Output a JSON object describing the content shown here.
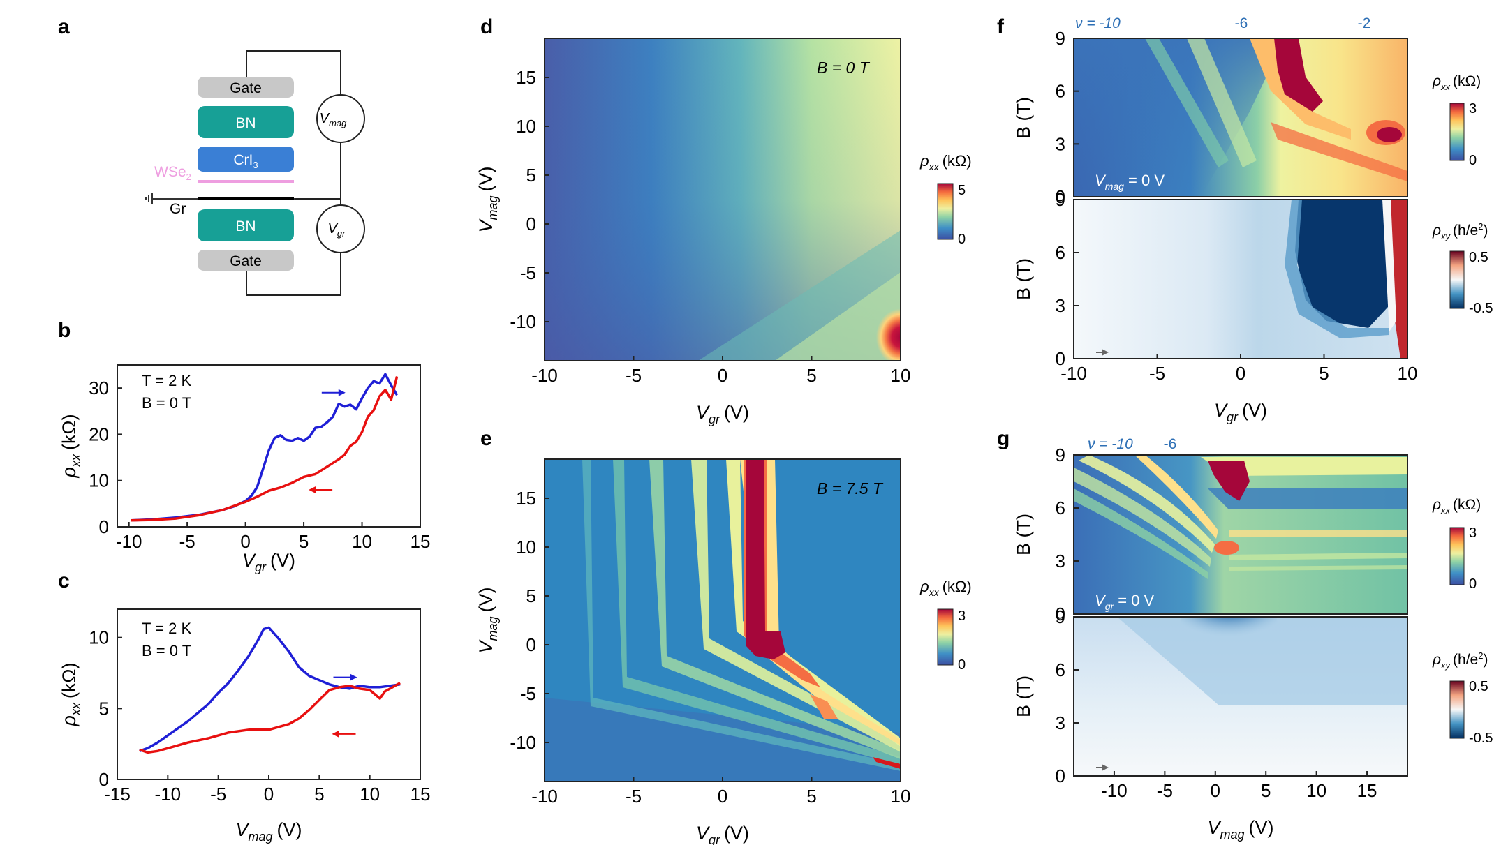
{
  "figure": {
    "panel_labels": [
      "a",
      "b",
      "c",
      "d",
      "e",
      "f",
      "g"
    ]
  },
  "schematic": {
    "layers": [
      "Gate",
      "BN",
      "CrI",
      "WSe",
      "Gr",
      "BN",
      "Gate"
    ],
    "subscript_3": "3",
    "subscript_2": "2",
    "meter_vmag": "V",
    "meter_vmag_sub": "mag",
    "meter_vgr": "V",
    "meter_vgr_sub": "gr",
    "colors": {
      "gate": "#c8c8c8",
      "bn": "#17a096",
      "cri3": "#3a7fd5",
      "wse2": "#ee9ee0",
      "graphene": "#000000"
    }
  },
  "chart_data": [
    {
      "id": "b",
      "type": "line",
      "title": "",
      "annotations": [
        "T = 2 K",
        "B = 0 T"
      ],
      "xlabel": "V",
      "xlabel_sub": "gr",
      "xunit": "(V)",
      "ylabel": "ρ",
      "ylabel_sub": "xx",
      "yunit": "(kΩ)",
      "xlim": [
        -11,
        15
      ],
      "ylim": [
        0,
        35
      ],
      "xticks": [
        -10,
        -5,
        0,
        5,
        10,
        15
      ],
      "yticks": [
        0,
        10,
        20,
        30
      ],
      "series": [
        {
          "name": "forward sweep",
          "color": "#1f1fd6",
          "x": [
            -9.8,
            -8,
            -6,
            -4,
            -2,
            -1,
            0,
            0.5,
            1,
            1.5,
            2,
            2.5,
            3,
            3.5,
            4,
            4.5,
            5,
            5.5,
            6,
            6.5,
            7,
            7.5,
            8,
            8.5,
            9,
            9.5,
            10,
            10.5,
            11,
            11.5,
            12,
            12.5,
            13
          ],
          "y": [
            1.4,
            1.6,
            2,
            2.6,
            3.6,
            4.4,
            5.6,
            6.7,
            8.6,
            12.5,
            16.5,
            19.2,
            19.8,
            18.8,
            18.6,
            19.2,
            18.6,
            19.5,
            21.4,
            21.6,
            22.6,
            23.8,
            26.6,
            26,
            26.4,
            25.4,
            27.8,
            30,
            31.5,
            31,
            33,
            30.6,
            28.5
          ]
        },
        {
          "name": "backward sweep",
          "color": "#e81010",
          "x": [
            -9.8,
            -8,
            -6,
            -4,
            -2,
            -1,
            0,
            1,
            2,
            3,
            4,
            5,
            6,
            7,
            8,
            8.5,
            9,
            9.5,
            10,
            10.5,
            11,
            11.5,
            12,
            12.5,
            13
          ],
          "y": [
            1.4,
            1.5,
            1.8,
            2.5,
            3.6,
            4.5,
            5.4,
            6.5,
            7.8,
            8.5,
            9.5,
            10.8,
            11.4,
            13,
            14.6,
            15.6,
            17.5,
            18.4,
            20.5,
            23.8,
            25.2,
            28.2,
            29.6,
            27.5,
            32.5
          ]
        }
      ],
      "arrows": [
        {
          "color": "#1f1fd6",
          "direction": "right",
          "at": [
            7.5,
            29
          ]
        },
        {
          "color": "#e81010",
          "direction": "left",
          "at": [
            6.5,
            8
          ]
        }
      ]
    },
    {
      "id": "c",
      "type": "line",
      "annotations": [
        "T = 2 K",
        "B = 0 T"
      ],
      "xlabel": "V",
      "xlabel_sub": "mag",
      "xunit": "(V)",
      "ylabel": "ρ",
      "ylabel_sub": "xx",
      "yunit": "(kΩ)",
      "xlim": [
        -15,
        15
      ],
      "ylim": [
        0,
        12
      ],
      "xticks": [
        -15,
        -10,
        -5,
        0,
        5,
        10,
        15
      ],
      "yticks": [
        0,
        5,
        10
      ],
      "series": [
        {
          "name": "forward sweep",
          "color": "#1f1fd6",
          "x": [
            -12.8,
            -12,
            -11,
            -10,
            -9,
            -8,
            -7,
            -6,
            -5,
            -4,
            -3,
            -2,
            -1,
            -0.5,
            0,
            1,
            2,
            3,
            4,
            5,
            6,
            7,
            8,
            9,
            10,
            11,
            12,
            13
          ],
          "y": [
            2,
            2.2,
            2.6,
            3.1,
            3.6,
            4.1,
            4.7,
            5.3,
            6.1,
            6.8,
            7.7,
            8.7,
            9.9,
            10.6,
            10.7,
            9.9,
            9,
            7.9,
            7.3,
            7,
            6.7,
            6.5,
            6.4,
            6.6,
            6.5,
            6.5,
            6.6,
            6.7
          ]
        },
        {
          "name": "backward sweep",
          "color": "#e81010",
          "x": [
            -12.8,
            -12,
            -11,
            -10,
            -8,
            -6,
            -4,
            -2,
            0,
            2,
            3,
            4,
            5,
            6,
            7,
            8,
            9,
            10,
            11,
            11.5,
            12,
            13
          ],
          "y": [
            2.1,
            1.9,
            2,
            2.2,
            2.6,
            2.9,
            3.3,
            3.5,
            3.5,
            3.9,
            4.3,
            4.9,
            5.6,
            6.3,
            6.5,
            6.6,
            6.4,
            6.3,
            5.7,
            6.2,
            6.4,
            6.8
          ]
        }
      ],
      "arrows": [
        {
          "color": "#1f1fd6",
          "direction": "right",
          "at": [
            7.5,
            7.2
          ]
        },
        {
          "color": "#e81010",
          "direction": "left",
          "at": [
            7.5,
            3.2
          ]
        }
      ]
    },
    {
      "id": "d",
      "type": "heatmap",
      "annotation": "B = 0 T",
      "xlabel": "V",
      "xlabel_sub": "gr",
      "xunit": "(V)",
      "ylabel": "V",
      "ylabel_sub": "mag",
      "yunit": "(V)",
      "xlim": [
        -10,
        10
      ],
      "ylim": [
        -14,
        19
      ],
      "xticks": [
        -10,
        -5,
        0,
        5,
        10
      ],
      "yticks": [
        -10,
        -5,
        0,
        5,
        10,
        15
      ],
      "colorbar": {
        "label": "ρ",
        "label_sub": "xx",
        "unit": "(kΩ)",
        "min": 0,
        "max": 5,
        "ticks": [
          "5",
          "0"
        ]
      }
    },
    {
      "id": "e",
      "type": "heatmap",
      "annotation": "B = 7.5 T",
      "xlabel": "V",
      "xlabel_sub": "gr",
      "xunit": "(V)",
      "ylabel": "V",
      "ylabel_sub": "mag",
      "yunit": "(V)",
      "xlim": [
        -10,
        10
      ],
      "ylim": [
        -14,
        19
      ],
      "xticks": [
        -10,
        -5,
        0,
        5,
        10
      ],
      "yticks": [
        -10,
        -5,
        0,
        5,
        10,
        15
      ],
      "colorbar": {
        "label": "ρ",
        "label_sub": "xx",
        "unit": "(kΩ)",
        "min": 0,
        "max": 3,
        "ticks": [
          "3",
          "0"
        ]
      }
    },
    {
      "id": "f",
      "type": "heatmap",
      "top_labels": {
        "nu": "ν = -10",
        "m6": "-6",
        "m2": "-2"
      },
      "top_annotation": "V",
      "top_annotation_sub": "mag",
      "top_annotation_rest": " = 0 V",
      "xlabel": "V",
      "xlabel_sub": "gr",
      "xunit": "(V)",
      "ylabel": "B (T)",
      "xlim": [
        -10,
        10
      ],
      "ylim": [
        0,
        9
      ],
      "xticks": [
        -10,
        -5,
        0,
        5,
        10
      ],
      "yticks": [
        0,
        3,
        6,
        9
      ],
      "colorbar_top": {
        "label": "ρ",
        "label_sub": "xx",
        "unit": "(kΩ)",
        "min": 0,
        "max": 3,
        "ticks": [
          "3",
          "0"
        ]
      },
      "colorbar_bottom": {
        "label": "ρ",
        "label_sub": "xy",
        "unit": "(h/e",
        "unit_sup": "2",
        "unit_end": ")",
        "min": -0.5,
        "max": 0.5,
        "ticks": [
          "0.5",
          "-0.5"
        ]
      }
    },
    {
      "id": "g",
      "type": "heatmap",
      "top_labels": {
        "nu": "ν = -10",
        "m6": "-6"
      },
      "top_annotation": "V",
      "top_annotation_sub": "gr",
      "top_annotation_rest": " = 0 V",
      "xlabel": "V",
      "xlabel_sub": "mag",
      "xunit": "(V)",
      "ylabel": "B (T)",
      "xlim": [
        -14,
        19
      ],
      "ylim": [
        0,
        9
      ],
      "xticks": [
        -10,
        -5,
        0,
        5,
        10,
        15
      ],
      "yticks": [
        0,
        3,
        6,
        9
      ],
      "colorbar_top": {
        "label": "ρ",
        "label_sub": "xx",
        "unit": "(kΩ)",
        "min": 0,
        "max": 3,
        "ticks": [
          "3",
          "0"
        ]
      },
      "colorbar_bottom": {
        "label": "ρ",
        "label_sub": "xy",
        "unit": "(h/e",
        "unit_sup": "2",
        "unit_end": ")",
        "min": -0.5,
        "max": 0.5,
        "ticks": [
          "0.5",
          "-0.5"
        ]
      }
    }
  ]
}
